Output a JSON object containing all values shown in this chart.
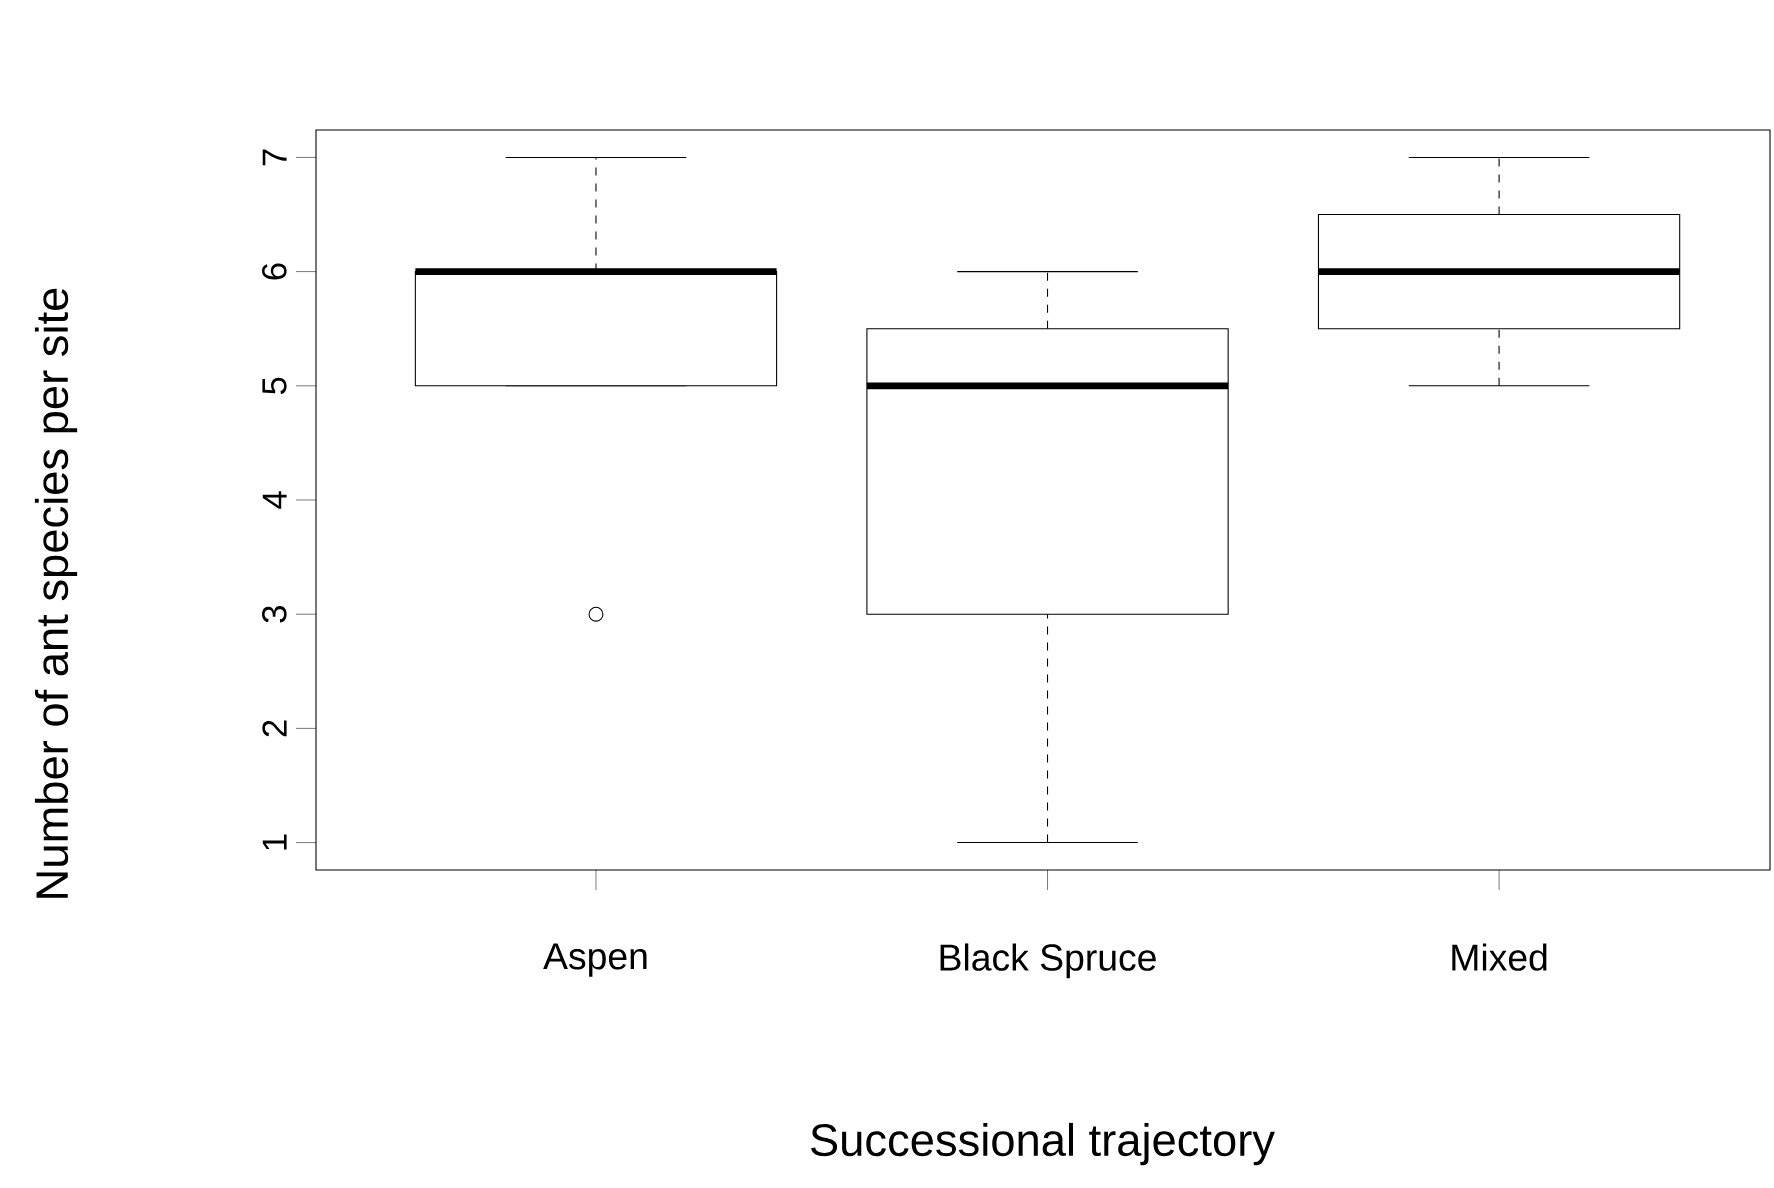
{
  "chart_data": {
    "type": "box",
    "xlabel": "Successional trajectory",
    "ylabel": "Number of ant species per site",
    "categories": [
      "Aspen",
      "Black Spruce",
      "Mixed"
    ],
    "boxes": [
      {
        "low": 5,
        "q1": 5,
        "median": 6,
        "q3": 6,
        "high": 7,
        "outliers": [
          3
        ]
      },
      {
        "low": 1,
        "q1": 3,
        "median": 5,
        "q3": 5.5,
        "high": 6
      },
      {
        "low": 5,
        "q1": 5.5,
        "median": 6,
        "q3": 6.5,
        "high": 7
      }
    ],
    "marker": "circle",
    "ylim": [
      0.76,
      7.24
    ],
    "yticks": [
      1,
      2,
      3,
      4,
      5,
      6,
      7
    ]
  }
}
